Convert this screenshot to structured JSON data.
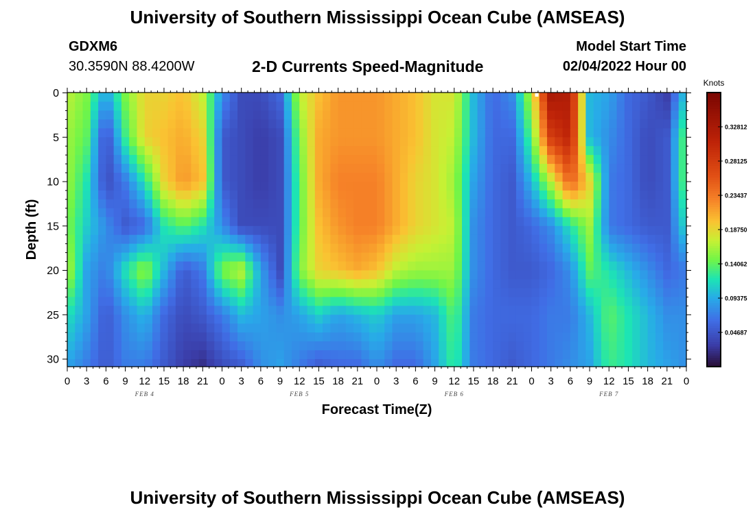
{
  "header": {
    "title": "University of Southern Mississippi Ocean Cube (AMSEAS)",
    "station_id": "GDXM6",
    "coordinates": "30.3590N  88.4200W",
    "product": "2-D Currents Speed-Magnitude",
    "model_start_label": "Model Start Time",
    "model_start_value": "02/04/2022 Hour 00"
  },
  "footer": {
    "title": "University of Southern Mississippi Ocean Cube (AMSEAS)"
  },
  "colors": {
    "background": "#ffffff",
    "axis": "#000000",
    "marker": "#ffffff"
  },
  "chart_data": {
    "type": "heatmap",
    "title": "2-D Currents Speed-Magnitude",
    "xlabel": "Forecast Time(Z)",
    "ylabel": "Depth (ft)",
    "xlim": [
      0,
      96
    ],
    "ylim": [
      0,
      31
    ],
    "y_inverted": true,
    "x_tick_labels": [
      "0",
      "3",
      "6",
      "9",
      "12",
      "15",
      "18",
      "21",
      "0",
      "3",
      "6",
      "9",
      "12",
      "15",
      "18",
      "21",
      "0",
      "3",
      "6",
      "9",
      "12",
      "15",
      "18",
      "21",
      "0",
      "3",
      "6",
      "9",
      "12",
      "15",
      "18",
      "21",
      "0"
    ],
    "y_ticks": [
      0,
      5,
      10,
      15,
      20,
      25,
      30
    ],
    "date_labels": [
      {
        "hour": 12,
        "label": "FEB 4"
      },
      {
        "hour": 36,
        "label": "FEB 5"
      },
      {
        "hour": 60,
        "label": "FEB 6"
      },
      {
        "hour": 84,
        "label": "FEB 7"
      }
    ],
    "colorbar": {
      "label": "Knots",
      "range": [
        0,
        0.375
      ],
      "ticks": [
        "0.32812",
        "0.28125",
        "0.23437",
        "0.18750",
        "0.14062",
        "0.09375",
        "0.04687"
      ],
      "tick_values": [
        0.32812,
        0.28125,
        0.23437,
        0.1875,
        0.14062,
        0.09375,
        0.04687
      ]
    },
    "depth_levels": [
      0,
      5,
      10,
      15,
      20,
      25,
      31
    ],
    "grid_hours": [
      0,
      3,
      6,
      9,
      12,
      15,
      18,
      21,
      24,
      27,
      30,
      33,
      36,
      39,
      42,
      45,
      48,
      51,
      54,
      57,
      60,
      63,
      66,
      69,
      72,
      75,
      78,
      81,
      84,
      87,
      90,
      93,
      96
    ],
    "values": [
      [
        0.17,
        0.15,
        0.09,
        0.15,
        0.19,
        0.19,
        0.2,
        0.17,
        0.08,
        0.04,
        0.04,
        0.06,
        0.17,
        0.2,
        0.22,
        0.22,
        0.22,
        0.21,
        0.2,
        0.18,
        0.18,
        0.1,
        0.06,
        0.08,
        0.17,
        0.33,
        0.32,
        0.1,
        0.09,
        0.06,
        0.05,
        0.03,
        0.11
      ],
      [
        0.16,
        0.14,
        0.04,
        0.13,
        0.19,
        0.2,
        0.21,
        0.19,
        0.05,
        0.04,
        0.03,
        0.04,
        0.15,
        0.21,
        0.22,
        0.22,
        0.22,
        0.21,
        0.2,
        0.18,
        0.17,
        0.1,
        0.06,
        0.06,
        0.14,
        0.28,
        0.31,
        0.1,
        0.08,
        0.06,
        0.04,
        0.05,
        0.15
      ],
      [
        0.16,
        0.12,
        0.04,
        0.07,
        0.12,
        0.19,
        0.22,
        0.2,
        0.05,
        0.04,
        0.03,
        0.04,
        0.14,
        0.21,
        0.23,
        0.23,
        0.23,
        0.21,
        0.19,
        0.18,
        0.16,
        0.09,
        0.06,
        0.05,
        0.1,
        0.17,
        0.25,
        0.19,
        0.07,
        0.06,
        0.04,
        0.05,
        0.15
      ],
      [
        0.15,
        0.11,
        0.08,
        0.05,
        0.06,
        0.12,
        0.14,
        0.12,
        0.08,
        0.04,
        0.04,
        0.04,
        0.14,
        0.2,
        0.22,
        0.23,
        0.23,
        0.21,
        0.19,
        0.18,
        0.17,
        0.08,
        0.06,
        0.05,
        0.06,
        0.08,
        0.12,
        0.16,
        0.07,
        0.06,
        0.05,
        0.05,
        0.12
      ],
      [
        0.17,
        0.09,
        0.07,
        0.12,
        0.16,
        0.1,
        0.05,
        0.07,
        0.15,
        0.17,
        0.09,
        0.04,
        0.15,
        0.19,
        0.2,
        0.21,
        0.2,
        0.17,
        0.16,
        0.16,
        0.16,
        0.08,
        0.06,
        0.05,
        0.05,
        0.06,
        0.08,
        0.14,
        0.12,
        0.1,
        0.08,
        0.06,
        0.07
      ],
      [
        0.12,
        0.09,
        0.05,
        0.08,
        0.1,
        0.06,
        0.04,
        0.05,
        0.07,
        0.1,
        0.09,
        0.08,
        0.09,
        0.11,
        0.09,
        0.1,
        0.11,
        0.09,
        0.09,
        0.1,
        0.14,
        0.07,
        0.06,
        0.06,
        0.06,
        0.07,
        0.07,
        0.1,
        0.14,
        0.12,
        0.1,
        0.08,
        0.08
      ],
      [
        0.09,
        0.07,
        0.05,
        0.07,
        0.07,
        0.05,
        0.03,
        0.02,
        0.04,
        0.05,
        0.08,
        0.09,
        0.07,
        0.05,
        0.06,
        0.06,
        0.08,
        0.06,
        0.06,
        0.09,
        0.13,
        0.07,
        0.06,
        0.05,
        0.06,
        0.07,
        0.08,
        0.09,
        0.13,
        0.12,
        0.1,
        0.09,
        0.08
      ]
    ]
  }
}
